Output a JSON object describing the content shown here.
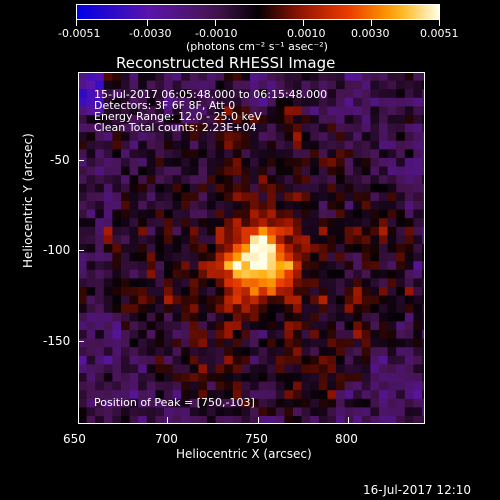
{
  "colorbar": {
    "tick_labels": [
      "-0.0051",
      "-0.0030",
      "-0.0010",
      "0.0010",
      "0.0030",
      "0.0051"
    ],
    "unit_label": "(photons cm⁻² s⁻¹ asec⁻²)",
    "range": [
      -0.0051,
      0.0051
    ]
  },
  "plot": {
    "title": "Reconstructed RHESSI Image",
    "x_axis_label": "Heliocentric X (arcsec)",
    "y_axis_label": "Heliocentric Y (arcsec)",
    "x_tick_labels": [
      "650",
      "700",
      "750",
      "800"
    ],
    "y_tick_labels": [
      "-50",
      "-100",
      "-150"
    ],
    "info_lines": [
      "15-Jul-2017 06:05:48.000 to 06:15:48.000",
      "Detectors: 3F 6F 8F, Att 0",
      "Energy Range: 12.0 - 25.0 keV",
      "Clean     Total counts: 2.23E+04"
    ],
    "peak_label": "Position of Peak = [750,-103]"
  },
  "footer": {
    "timestamp": "16-Jul-2017 12:10"
  },
  "colors": {
    "background": "#000000",
    "foreground": "#ffffff"
  }
}
